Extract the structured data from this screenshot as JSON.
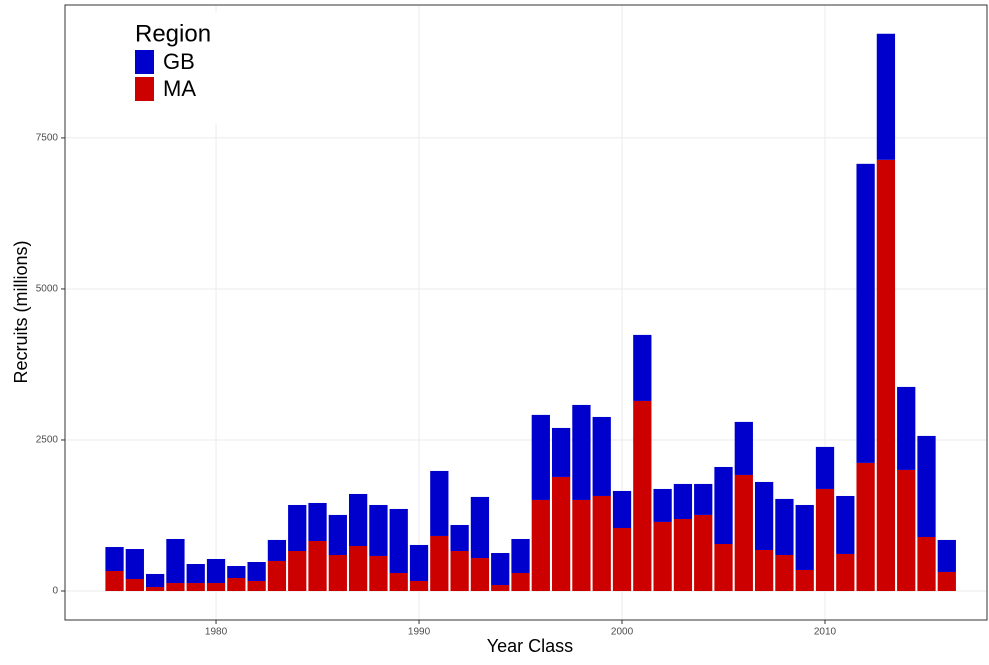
{
  "chart_data": {
    "type": "stacked-bar",
    "x_label": "Year Class",
    "y_label": "Recruits (millions)",
    "x": [
      1975,
      1976,
      1977,
      1978,
      1979,
      1980,
      1981,
      1982,
      1983,
      1984,
      1985,
      1986,
      1987,
      1988,
      1989,
      1990,
      1991,
      1992,
      1993,
      1994,
      1995,
      1996,
      1997,
      1998,
      1999,
      2000,
      2001,
      2002,
      2003,
      2004,
      2005,
      2006,
      2007,
      2008,
      2009,
      2010,
      2011,
      2012,
      2013,
      2014,
      2015,
      2016
    ],
    "series": [
      {
        "name": "GB",
        "color": "#0000cd",
        "values": [
          397,
          496,
          216,
          729,
          315,
          398,
          199,
          314,
          348,
          762,
          629,
          663,
          861,
          844,
          1060,
          596,
          1076,
          431,
          1011,
          530,
          563,
          1408,
          811,
          1573,
          1308,
          613,
          1093,
          546,
          580,
          513,
          1275,
          878,
          1126,
          928,
          1076,
          696,
          960,
          4951,
          2087,
          1374,
          1673,
          530
        ]
      },
      {
        "name": "MA",
        "color": "#cd0000",
        "values": [
          331,
          199,
          66,
          132,
          132,
          132,
          215,
          166,
          497,
          662,
          828,
          596,
          745,
          580,
          298,
          166,
          911,
          662,
          546,
          99,
          298,
          1507,
          1888,
          1507,
          1573,
          1043,
          3146,
          1143,
          1192,
          1259,
          778,
          1921,
          679,
          596,
          348,
          1689,
          613,
          2120,
          7137,
          2004,
          894,
          315
        ]
      }
    ],
    "legend_title": "Region",
    "legend_position": "top-left",
    "xlim": [
      1972.56,
      2017.98
    ],
    "xticks": [
      1980,
      1990,
      2000,
      2010
    ],
    "ylim": [
      -480,
      9700
    ],
    "yticks": [
      0,
      2500,
      5000,
      7500
    ],
    "grid": true
  }
}
